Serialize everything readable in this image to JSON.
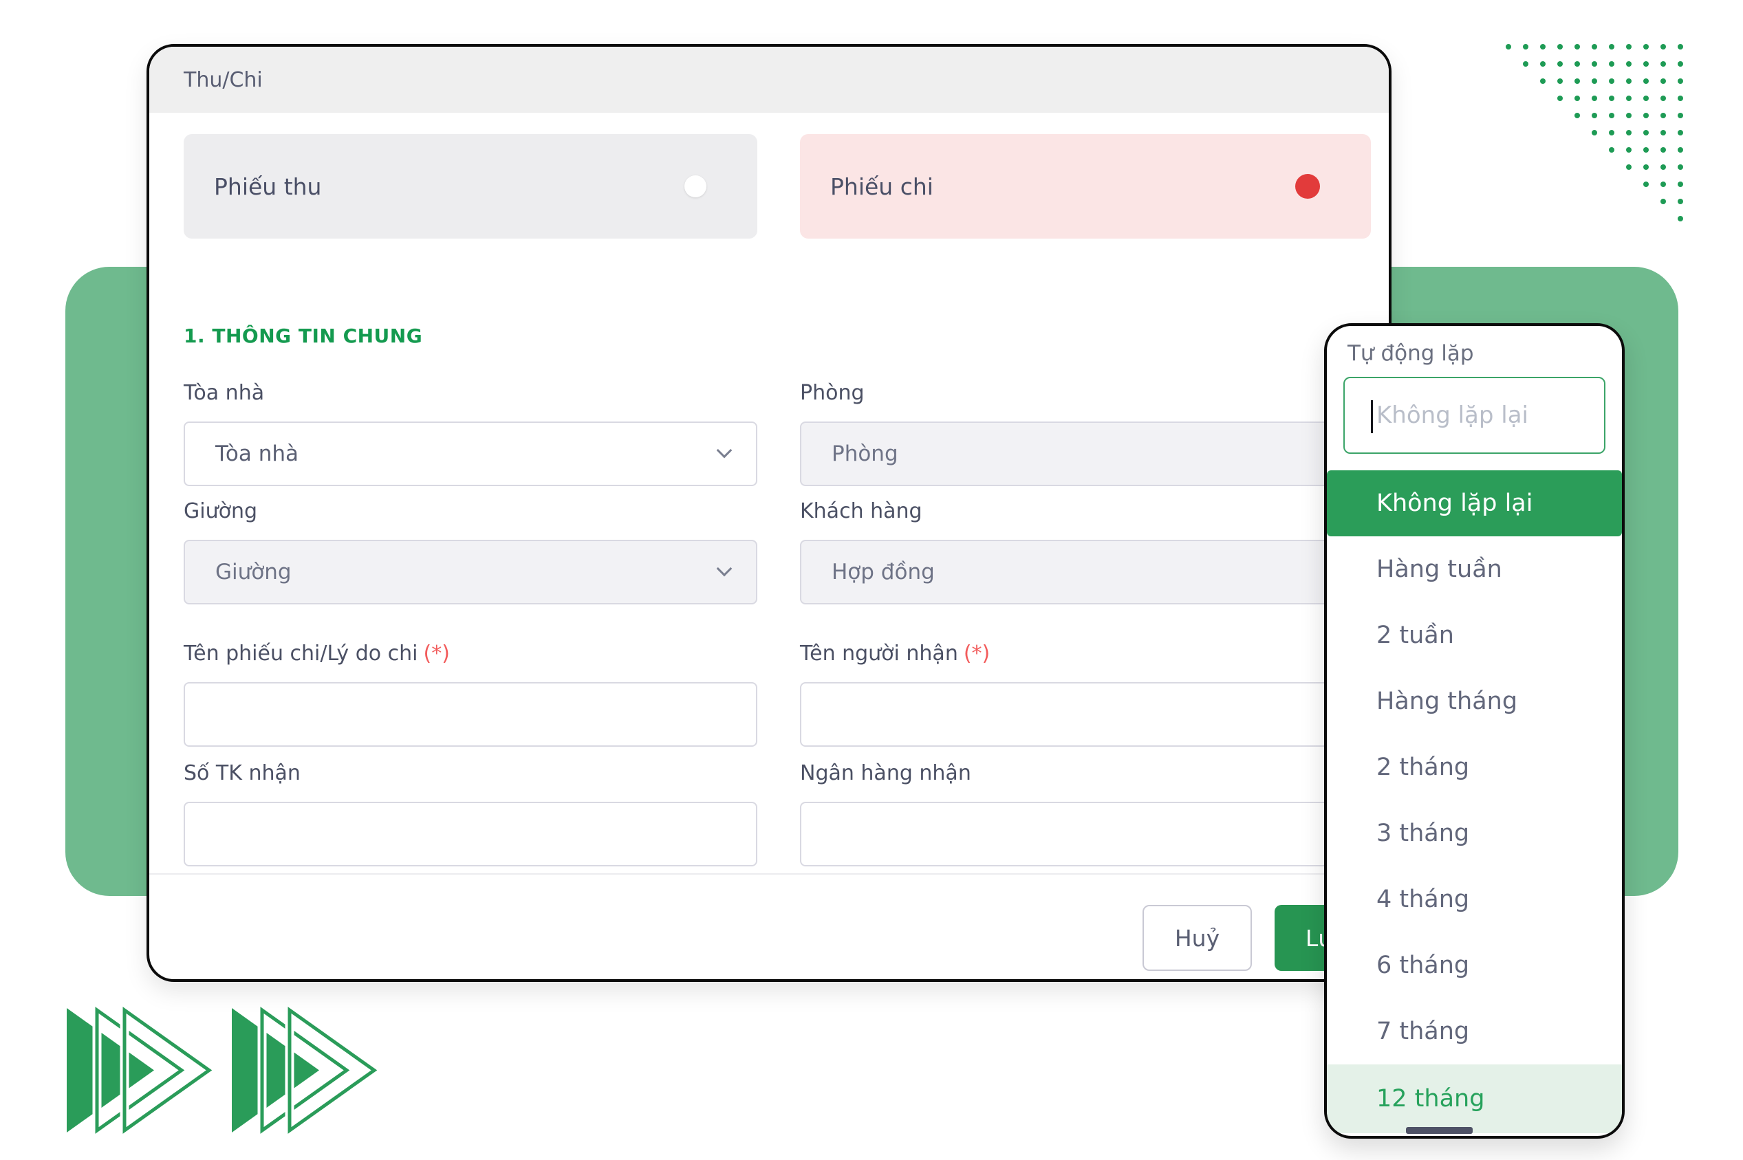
{
  "modal": {
    "title": "Thu/Chi",
    "tabs": [
      {
        "label": "Phiếu thu",
        "selected": false
      },
      {
        "label": "Phiếu chi",
        "selected": true
      }
    ],
    "section_title": "1. THÔNG TIN CHUNG",
    "fields": [
      {
        "label": "Tòa nhà",
        "type": "select",
        "value": "Tòa nhà",
        "disabled": false
      },
      {
        "label": "Phòng",
        "type": "select",
        "value": "Phòng",
        "disabled": true
      },
      {
        "label": "Giường",
        "type": "select",
        "value": "Giường",
        "disabled": true
      },
      {
        "label": "Khách hàng",
        "type": "select",
        "value": "Hợp đồng",
        "disabled": true
      },
      {
        "label": "Tên phiếu chi/Lý do chi",
        "required": "(*)",
        "type": "text",
        "value": ""
      },
      {
        "label": "Tên người nhận",
        "required": "(*)",
        "type": "text",
        "value": ""
      },
      {
        "label": "Số TK nhận",
        "type": "text",
        "value": ""
      },
      {
        "label": "Ngân hàng nhận",
        "type": "text",
        "value": ""
      }
    ],
    "footer": {
      "cancel_label": "Huỷ",
      "save_label": "Lưu"
    }
  },
  "popover": {
    "title": "Tự động lặp",
    "input_value": "",
    "input_placeholder": "Không lặp lại",
    "options": [
      {
        "label": "Không lặp lại",
        "state": "selected"
      },
      {
        "label": "Hàng tuần",
        "state": "normal"
      },
      {
        "label": "2 tuần",
        "state": "normal"
      },
      {
        "label": "Hàng tháng",
        "state": "normal"
      },
      {
        "label": "2 tháng",
        "state": "normal"
      },
      {
        "label": "3 tháng",
        "state": "normal"
      },
      {
        "label": "4 tháng",
        "state": "normal"
      },
      {
        "label": "6 tháng",
        "state": "normal"
      },
      {
        "label": "7 tháng",
        "state": "normal"
      },
      {
        "label": "12 tháng",
        "state": "highlighted"
      }
    ]
  },
  "colors": {
    "accent_green": "#1E9B55",
    "sage_green": "#6FBA8E",
    "selected_option_green": "#2B9D59",
    "highlight_option_bg": "#E4F1E8",
    "highlight_option_text": "#27A25C",
    "danger_red": "#E23B3B",
    "pink_tab_bg": "#FBE5E5",
    "save_button_green": "#279552",
    "section_title_green": "#149A4F"
  },
  "decor": {
    "dot_rows": 11,
    "dot_cols": 11
  }
}
